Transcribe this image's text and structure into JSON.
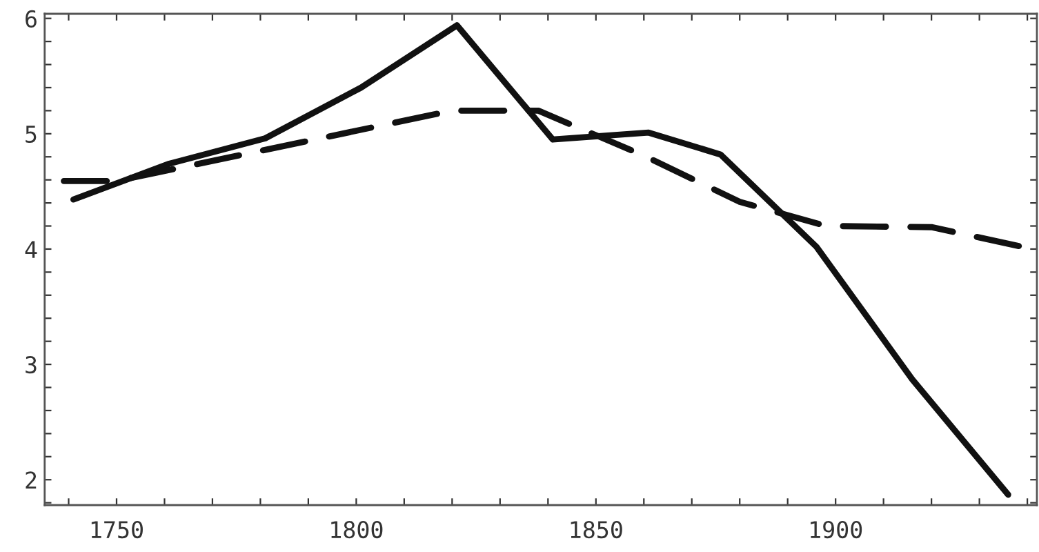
{
  "chart_data": {
    "type": "line",
    "xlim": [
      1735,
      1942
    ],
    "ylim": [
      1.78,
      6.04
    ],
    "xticks": [
      {
        "value": 1740,
        "label": null
      },
      1750,
      {
        "value": 1760,
        "label": null
      },
      {
        "value": 1770,
        "label": null
      },
      {
        "value": 1780,
        "label": null
      },
      {
        "value": 1790,
        "label": null
      },
      1800,
      {
        "value": 1810,
        "label": null
      },
      {
        "value": 1820,
        "label": null
      },
      {
        "value": 1830,
        "label": null
      },
      {
        "value": 1840,
        "label": null
      },
      1850,
      {
        "value": 1860,
        "label": null
      },
      {
        "value": 1870,
        "label": null
      },
      {
        "value": 1880,
        "label": null
      },
      {
        "value": 1890,
        "label": null
      },
      1900,
      {
        "value": 1910,
        "label": null
      },
      {
        "value": 1920,
        "label": null
      },
      {
        "value": 1930,
        "label": null
      },
      {
        "value": 1940,
        "label": null
      }
    ],
    "yticks": [
      {
        "value": 1.8,
        "label": null
      },
      2,
      {
        "value": 2.2,
        "label": null
      },
      {
        "value": 2.4,
        "label": null
      },
      {
        "value": 2.6,
        "label": null
      },
      {
        "value": 2.8,
        "label": null
      },
      3,
      {
        "value": 3.2,
        "label": null
      },
      {
        "value": 3.4,
        "label": null
      },
      {
        "value": 3.6,
        "label": null
      },
      {
        "value": 3.8,
        "label": null
      },
      4,
      {
        "value": 4.2,
        "label": null
      },
      {
        "value": 4.4,
        "label": null
      },
      {
        "value": 4.6,
        "label": null
      },
      {
        "value": 4.8,
        "label": null
      },
      5,
      {
        "value": 5.2,
        "label": null
      },
      {
        "value": 5.4,
        "label": null
      },
      {
        "value": 5.6,
        "label": null
      },
      {
        "value": 5.8,
        "label": null
      },
      6
    ],
    "grid": false,
    "legend": false,
    "series": [
      {
        "color": "#111111",
        "line_style": "solid",
        "x": [
          1741,
          1761,
          1781,
          1801,
          1821,
          1841,
          1861,
          1876,
          1896,
          1916,
          1936
        ],
        "values": [
          4.43,
          4.74,
          4.96,
          5.4,
          5.94,
          4.95,
          5.01,
          4.82,
          4.02,
          2.87,
          1.87
        ]
      },
      {
        "color": "#111111",
        "line_style": "dashed",
        "x": [
          1739,
          1750,
          1820,
          1838,
          1860,
          1880,
          1898,
          1920,
          1940
        ],
        "values": [
          4.59,
          4.59,
          5.2,
          5.2,
          4.81,
          4.41,
          4.2,
          4.19,
          4.01
        ]
      }
    ]
  }
}
